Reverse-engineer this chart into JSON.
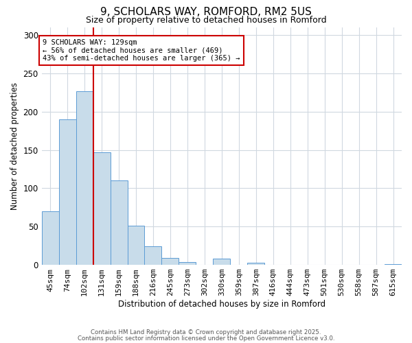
{
  "title": "9, SCHOLARS WAY, ROMFORD, RM2 5US",
  "subtitle": "Size of property relative to detached houses in Romford",
  "xlabel": "Distribution of detached houses by size in Romford",
  "ylabel": "Number of detached properties",
  "bar_labels": [
    "45sqm",
    "74sqm",
    "102sqm",
    "131sqm",
    "159sqm",
    "188sqm",
    "216sqm",
    "245sqm",
    "273sqm",
    "302sqm",
    "330sqm",
    "359sqm",
    "387sqm",
    "416sqm",
    "444sqm",
    "473sqm",
    "501sqm",
    "530sqm",
    "558sqm",
    "587sqm",
    "615sqm"
  ],
  "bar_values": [
    70,
    190,
    227,
    147,
    110,
    51,
    24,
    9,
    4,
    0,
    8,
    0,
    3,
    0,
    0,
    0,
    0,
    0,
    0,
    0,
    1
  ],
  "bar_color": "#c8dcea",
  "bar_edge_color": "#5b9bd5",
  "ylim": [
    0,
    310
  ],
  "yticks": [
    0,
    50,
    100,
    150,
    200,
    250,
    300
  ],
  "vline_x": 3.0,
  "vline_color": "#cc0000",
  "annotation_title": "9 SCHOLARS WAY: 129sqm",
  "annotation_line1": "← 56% of detached houses are smaller (469)",
  "annotation_line2": "43% of semi-detached houses are larger (365) →",
  "annotation_box_color": "#ffffff",
  "annotation_box_edge": "#cc0000",
  "footer1": "Contains HM Land Registry data © Crown copyright and database right 2025.",
  "footer2": "Contains public sector information licensed under the Open Government Licence v3.0.",
  "background_color": "#ffffff",
  "grid_color": "#d0d8e0"
}
